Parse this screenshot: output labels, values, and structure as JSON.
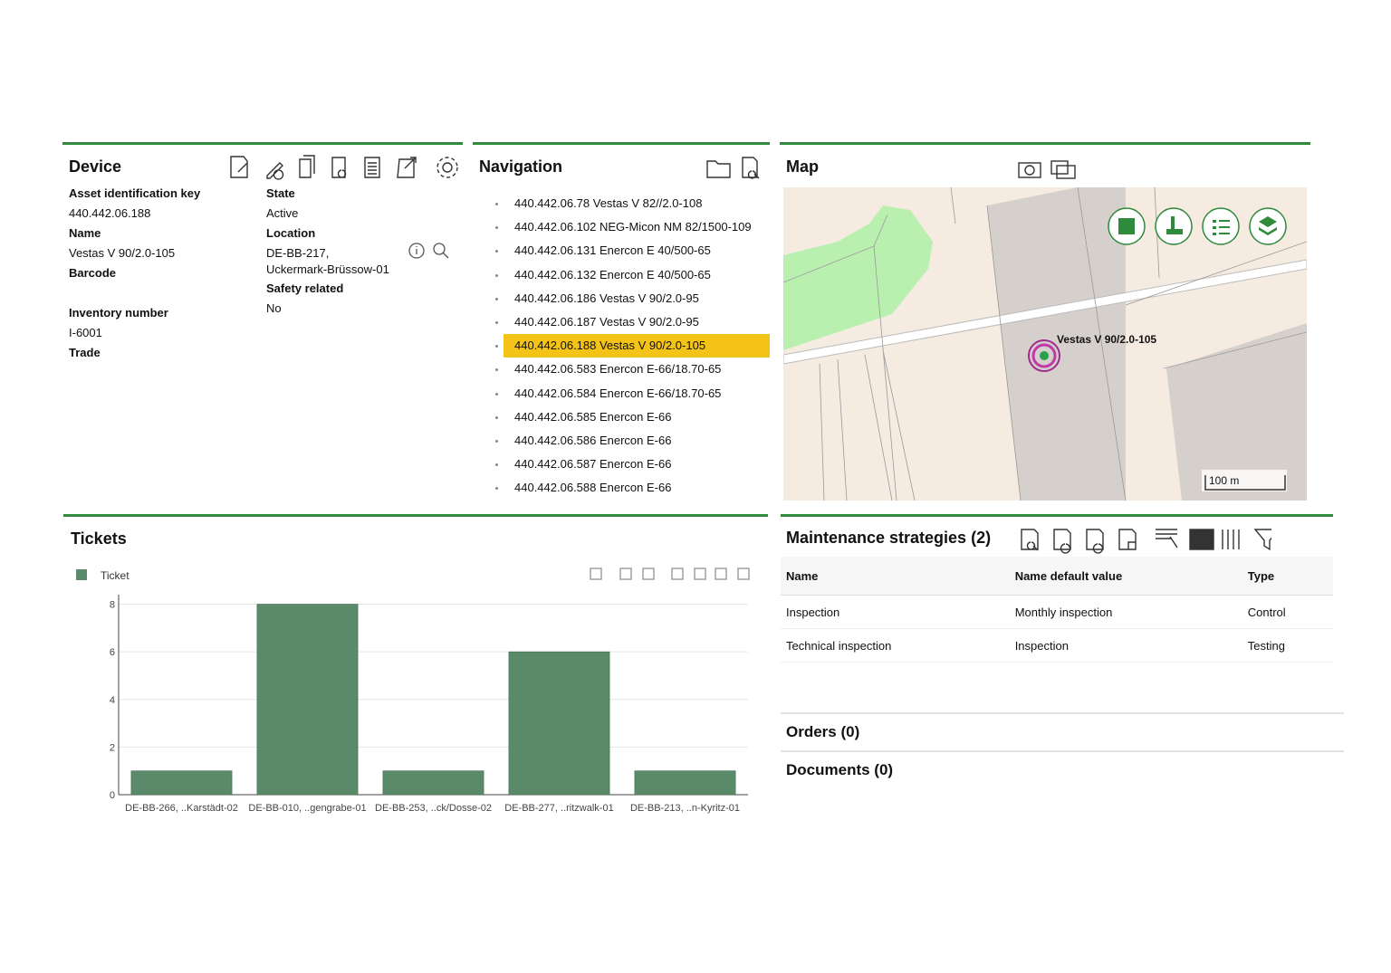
{
  "device": {
    "title": "Device",
    "left_fields": [
      {
        "label": "Asset identification key",
        "value": "440.442.06.188"
      },
      {
        "label": "Name",
        "value": "Vestas V 90/2.0-105"
      },
      {
        "label": "Barcode"
      },
      {
        "label": "Inventory number",
        "value": "I-6001"
      },
      {
        "label": "Trade"
      }
    ],
    "right_fields": [
      {
        "label": "State",
        "value": "Active"
      },
      {
        "label": "Location",
        "value": "DE-BB-217, Uckermark-Brüssow-01"
      },
      {
        "label": "Safety related",
        "value": "No"
      }
    ]
  },
  "navigation": {
    "title": "Navigation",
    "items": [
      "440.442.06.78 Vestas V 82//2.0-108",
      "440.442.06.102 NEG-Micon NM 82/1500-109",
      "440.442.06.131 Enercon E 40/500-65",
      "440.442.06.132 Enercon E 40/500-65",
      "440.442.06.186 Vestas V 90/2.0-95",
      "440.442.06.187 Vestas V 90/2.0-95",
      "440.442.06.188 Vestas V 90/2.0-105",
      "440.442.06.583 Enercon E-66/18.70-65",
      "440.442.06.584 Enercon E-66/18.70-65",
      "440.442.06.585 Enercon E-66",
      "440.442.06.586 Enercon E-66",
      "440.442.06.587 Enercon E-66",
      "440.442.06.588 Enercon E-66"
    ]
  },
  "map": {
    "title": "Map",
    "marker_label": "Vestas V 90/2.0-105",
    "scale": "100 m"
  },
  "chart_data": {
    "type": "bar",
    "title": "Tickets",
    "categories": [
      "DE-BB-266, ..Karstädt-02",
      "DE-BB-010, ..gengrabe-01",
      "DE-BB-253, ..ck/Dosse-02",
      "DE-BB-277, ..ritzwalk-01",
      "DE-BB-213, ..n-Kyritz-01"
    ],
    "series": [
      {
        "name": "Ticket",
        "color": "#5a8a6a",
        "values": [
          1,
          8,
          1,
          6,
          1
        ]
      }
    ],
    "ylim": [
      0,
      8.4
    ],
    "yticks": [
      0,
      2,
      4,
      6,
      8
    ],
    "grid": true,
    "legend": "top-left"
  },
  "maintenance": {
    "title": "Maintenance strategies (2)",
    "columns": [
      "Name",
      "Name default value",
      "Type"
    ],
    "rows": [
      [
        "Inspection",
        "Monthly inspection",
        "Control"
      ],
      [
        "Technical inspection",
        "Inspection",
        "Testing"
      ]
    ]
  },
  "orders": {
    "title": "Orders (0)"
  },
  "documents": {
    "title": "Documents (0)"
  }
}
